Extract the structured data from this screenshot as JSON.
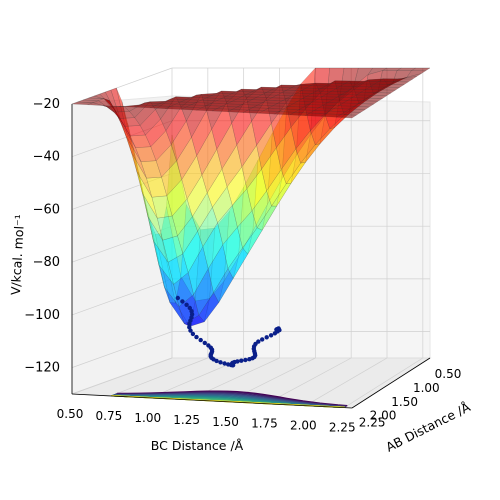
{
  "chart_data": {
    "type": "surface3d",
    "xlabel": "BC Distance /Å",
    "ylabel": "AB Distance /Å",
    "zlabel": "V/kcal. mol⁻¹",
    "x_ticks": [
      "0.50",
      "0.75",
      "1.00",
      "1.25",
      "1.50",
      "1.75",
      "2.00",
      "2.25"
    ],
    "y_ticks": [
      "0.50",
      "1.00",
      "1.50",
      "2.00",
      "2.25"
    ],
    "y_ticks_display": [
      "2.25",
      "2.00",
      "1.50",
      "1.00",
      "0.50"
    ],
    "z_ticks": [
      "−120",
      "−100",
      "−80",
      "−60",
      "−40",
      "−20"
    ],
    "z_tick_values": [
      -120,
      -100,
      -80,
      -60,
      -40,
      -20
    ],
    "xlim": [
      0.5,
      2.3
    ],
    "ylim": [
      0.5,
      2.3
    ],
    "zlim": [
      -130,
      -20
    ],
    "colormap_surface": "jet",
    "colormap_contour": "viridis",
    "trajectory": {
      "color": "#0a1f8a",
      "marker": "circle",
      "note_points": [
        [
          0.74,
          1.05,
          -103
        ],
        [
          1.05,
          1.2,
          -109
        ],
        [
          1.3,
          1.45,
          -118
        ],
        [
          1.5,
          1.75,
          -122
        ],
        [
          1.75,
          2.2,
          -110
        ]
      ]
    }
  }
}
